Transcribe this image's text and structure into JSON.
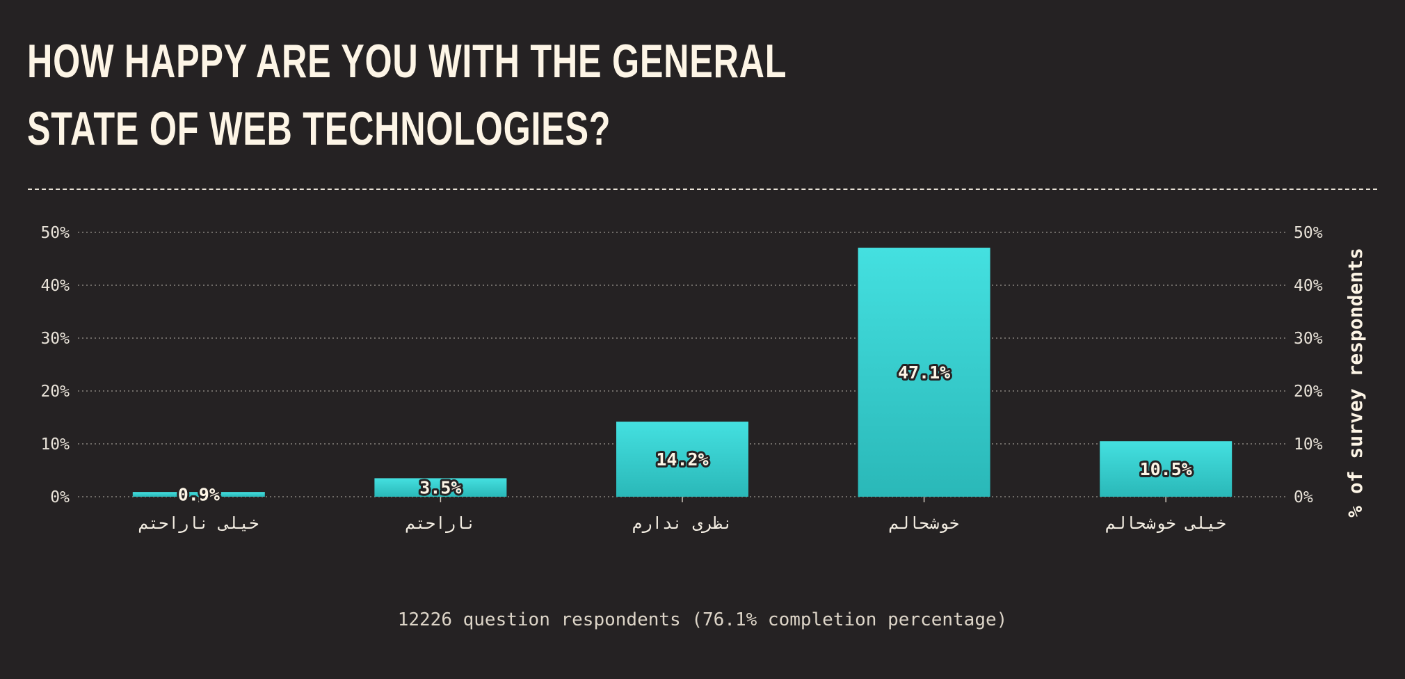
{
  "chart_data": {
    "type": "bar",
    "title": "HOW HAPPY ARE YOU WITH THE GENERAL STATE OF WEB TECHNOLOGIES?",
    "categories": [
      "خیلی ناراحتم",
      "ناراحتم",
      "نظری ندارم",
      "خوشحالم",
      "خیلی خوشحالم"
    ],
    "values": [
      0.9,
      3.5,
      14.2,
      47.1,
      10.5
    ],
    "data_labels": [
      "0.9%",
      "3.5%",
      "14.2%",
      "47.1%",
      "10.5%"
    ],
    "yticks": [
      0,
      10,
      20,
      30,
      40,
      50
    ],
    "ytick_labels": [
      "0%",
      "10%",
      "20%",
      "30%",
      "40%",
      "50%"
    ],
    "ylim": [
      0,
      50
    ],
    "ylabel": "% of survey respondents",
    "xlabel": "",
    "grid": true,
    "bar_color_top": "#44e0e0",
    "bar_color_bottom": "#2ab8b8"
  },
  "footer": {
    "note": "12226 question respondents (76.1% completion percentage)"
  },
  "colors": {
    "background": "#252223",
    "text": "#fdf5e6",
    "gridline": "#8a8580"
  }
}
